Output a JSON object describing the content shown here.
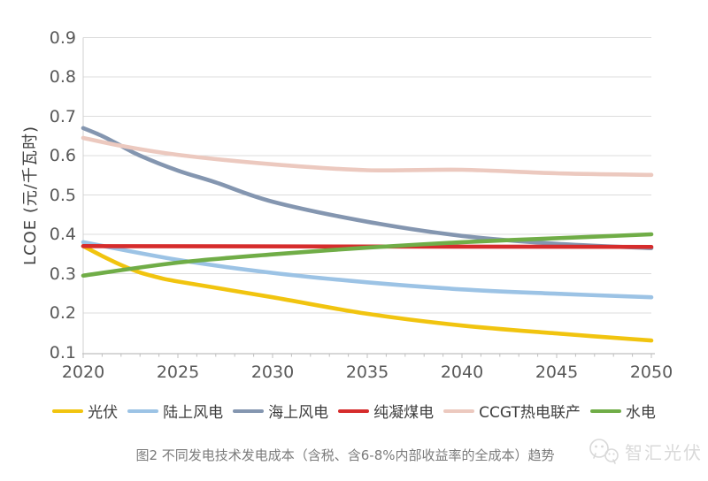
{
  "chart_data": {
    "type": "line",
    "title": "",
    "xlabel": "",
    "ylabel": "LCOE (元/千瓦时)",
    "xlim": [
      2020,
      2050
    ],
    "ylim": [
      0.1,
      0.9
    ],
    "grid": "horizontal",
    "legend_position": "bottom",
    "x_ticks": [
      2020,
      2025,
      2030,
      2035,
      2040,
      2045,
      2050
    ],
    "x_tick_labels": [
      "2020",
      "2025",
      "2030",
      "2035",
      "2040",
      "2045",
      "2050"
    ],
    "y_ticks": [
      0.1,
      0.2,
      0.3,
      0.4,
      0.5,
      0.6,
      0.7,
      0.8,
      0.9
    ],
    "y_tick_labels": [
      "0.1",
      "0.2",
      "0.3",
      "0.4",
      "0.5",
      "0.6",
      "0.7",
      "0.8",
      "0.9"
    ],
    "series": [
      {
        "name": "光伏",
        "color": "#F1C40F",
        "x": [
          2020,
          2021,
          2022,
          2023,
          2024,
          2025,
          2030,
          2035,
          2040,
          2045,
          2050
        ],
        "values": [
          0.37,
          0.345,
          0.322,
          0.303,
          0.29,
          0.28,
          0.24,
          0.198,
          0.168,
          0.148,
          0.13
        ]
      },
      {
        "name": "陆上风电",
        "color": "#9CC3E5",
        "x": [
          2020,
          2025,
          2030,
          2035,
          2040,
          2045,
          2050
        ],
        "values": [
          0.38,
          0.335,
          0.302,
          0.278,
          0.26,
          0.249,
          0.24
        ]
      },
      {
        "name": "海上风电",
        "color": "#8496B0",
        "x": [
          2020,
          2021,
          2022,
          2023,
          2025,
          2027,
          2030,
          2035,
          2040,
          2045,
          2050
        ],
        "values": [
          0.67,
          0.65,
          0.625,
          0.6,
          0.562,
          0.532,
          0.483,
          0.432,
          0.396,
          0.376,
          0.365
        ]
      },
      {
        "name": "纯凝煤电",
        "color": "#D62C2C",
        "x": [
          2020,
          2050
        ],
        "values": [
          0.37,
          0.368
        ]
      },
      {
        "name": "CCGT热电联产",
        "color": "#ECC9BF",
        "x": [
          2020,
          2022,
          2025,
          2030,
          2035,
          2040,
          2045,
          2050
        ],
        "values": [
          0.645,
          0.625,
          0.602,
          0.578,
          0.563,
          0.564,
          0.555,
          0.551
        ]
      },
      {
        "name": "水电",
        "color": "#70AD47",
        "x": [
          2020,
          2025,
          2030,
          2035,
          2040,
          2045,
          2050
        ],
        "values": [
          0.295,
          0.328,
          0.349,
          0.366,
          0.38,
          0.39,
          0.4
        ]
      }
    ]
  },
  "caption": "图2 不同发电技术发电成本（含税、含6-8%内部收益率的全成本）趋势",
  "watermark": {
    "text": "智汇光伏",
    "logo": "double-smiley-chat-icon"
  }
}
